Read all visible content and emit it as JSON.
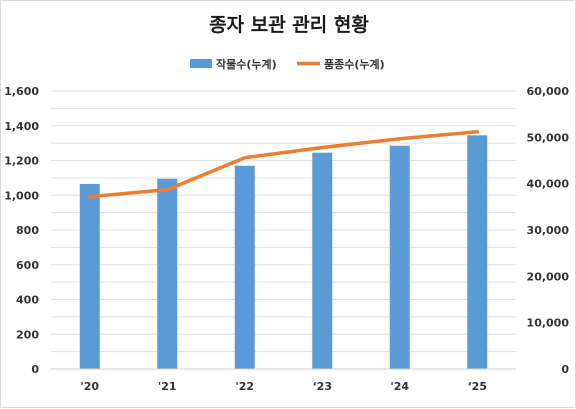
{
  "colors": {
    "bar": "#5b9bd5",
    "line": "#ed7d31",
    "grid": "#e0e0e0"
  },
  "chart_data": {
    "type": "bar+line",
    "title": "종자 보관 관리 현황",
    "categories": [
      "'20",
      "'21",
      "'22",
      "‘23",
      "'24",
      "‘25"
    ],
    "series": [
      {
        "name": "작물수(누계)",
        "type": "bar",
        "axis": "left",
        "values": [
          1065,
          1095,
          1170,
          1245,
          1285,
          1345
        ]
      },
      {
        "name": "품종수(누계)",
        "type": "line",
        "axis": "right",
        "values": [
          37200,
          38700,
          45600,
          47800,
          49700,
          51200
        ]
      }
    ],
    "y_left": {
      "ylim": [
        0,
        1600
      ],
      "ticks": [
        "0",
        "200",
        "400",
        "600",
        "800",
        "1,000",
        "1,200",
        "1,400",
        "1,600"
      ]
    },
    "y_right": {
      "ylim": [
        0,
        60000
      ],
      "ticks": [
        "0",
        "10,000",
        "20,000",
        "30,000",
        "40,000",
        "50,000",
        "60,000"
      ]
    },
    "grid": true,
    "legend": "top-center"
  }
}
